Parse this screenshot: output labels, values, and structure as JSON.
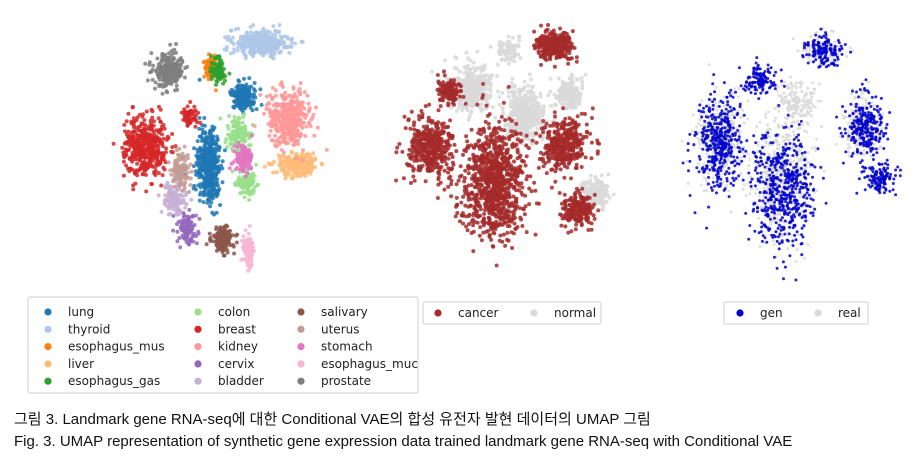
{
  "chart_data": [
    {
      "type": "scatter",
      "title": "",
      "xlabel": "",
      "ylabel": "",
      "grid": false,
      "legend_position": "bottom",
      "series": [
        {
          "name": "lung",
          "color": "#1f77b4",
          "clusters": [
            [
              0.42,
              0.55,
              0.05,
              0.16,
              380
            ],
            [
              0.57,
              0.28,
              0.05,
              0.05,
              170
            ]
          ]
        },
        {
          "name": "thyroid",
          "color": "#aec7e8",
          "clusters": [
            [
              0.64,
              0.07,
              0.12,
              0.05,
              320
            ]
          ]
        },
        {
          "name": "esophagus_mus",
          "color": "#ff7f0e",
          "clusters": [
            [
              0.43,
              0.17,
              0.025,
              0.05,
              70
            ]
          ]
        },
        {
          "name": "liver",
          "color": "#ffbb78",
          "clusters": [
            [
              0.8,
              0.55,
              0.09,
              0.05,
              220
            ]
          ]
        },
        {
          "name": "esophagus_gas",
          "color": "#2ca02c",
          "clusters": [
            [
              0.46,
              0.18,
              0.03,
              0.05,
              90
            ]
          ]
        },
        {
          "name": "colon",
          "color": "#98df8a",
          "clusters": [
            [
              0.55,
              0.43,
              0.05,
              0.06,
              140
            ],
            [
              0.58,
              0.62,
              0.04,
              0.05,
              120
            ]
          ]
        },
        {
          "name": "breast",
          "color": "#d62728",
          "clusters": [
            [
              0.15,
              0.48,
              0.09,
              0.12,
              420
            ],
            [
              0.34,
              0.36,
              0.03,
              0.04,
              60
            ]
          ]
        },
        {
          "name": "kidney",
          "color": "#ff9896",
          "clusters": [
            [
              0.76,
              0.37,
              0.09,
              0.11,
              380
            ]
          ]
        },
        {
          "name": "cervix",
          "color": "#9467bd",
          "clusters": [
            [
              0.33,
              0.8,
              0.04,
              0.06,
              110
            ]
          ]
        },
        {
          "name": "bladder",
          "color": "#c5b0d5",
          "clusters": [
            [
              0.27,
              0.68,
              0.05,
              0.06,
              130
            ]
          ]
        },
        {
          "name": "salivary",
          "color": "#8c564b",
          "clusters": [
            [
              0.48,
              0.84,
              0.05,
              0.05,
              160
            ]
          ]
        },
        {
          "name": "uterus",
          "color": "#c49c94",
          "clusters": [
            [
              0.3,
              0.57,
              0.04,
              0.06,
              120
            ]
          ]
        },
        {
          "name": "stomach",
          "color": "#e377c2",
          "clusters": [
            [
              0.57,
              0.52,
              0.04,
              0.05,
              120
            ]
          ]
        },
        {
          "name": "esophagus_muc",
          "color": "#f7b6d2",
          "clusters": [
            [
              0.59,
              0.88,
              0.025,
              0.07,
              80
            ]
          ]
        },
        {
          "name": "prostate",
          "color": "#7f7f7f",
          "clusters": [
            [
              0.25,
              0.18,
              0.06,
              0.06,
              240
            ]
          ]
        }
      ]
    },
    {
      "type": "scatter",
      "title": "",
      "xlabel": "",
      "ylabel": "",
      "grid": false,
      "legend_position": "bottom",
      "series": [
        {
          "name": "cancer",
          "color": "#a52a2a",
          "clusters": [
            [
              0.15,
              0.48,
              0.09,
              0.12,
              420
            ],
            [
              0.42,
              0.62,
              0.13,
              0.22,
              900
            ],
            [
              0.68,
              0.08,
              0.08,
              0.06,
              300
            ],
            [
              0.72,
              0.47,
              0.09,
              0.1,
              380
            ],
            [
              0.78,
              0.72,
              0.07,
              0.06,
              200
            ],
            [
              0.23,
              0.26,
              0.05,
              0.05,
              120
            ]
          ]
        },
        {
          "name": "normal",
          "color": "#d9d9d9",
          "clusters": [
            [
              0.32,
              0.25,
              0.09,
              0.09,
              380
            ],
            [
              0.55,
              0.35,
              0.08,
              0.11,
              400
            ],
            [
              0.74,
              0.27,
              0.06,
              0.06,
              160
            ],
            [
              0.86,
              0.66,
              0.06,
              0.05,
              140
            ],
            [
              0.48,
              0.1,
              0.05,
              0.04,
              80
            ]
          ]
        }
      ]
    },
    {
      "type": "scatter",
      "title": "",
      "xlabel": "",
      "ylabel": "",
      "grid": false,
      "legend_position": "bottom",
      "series": [
        {
          "name": "gen",
          "color": "#0000cc",
          "clusters": [
            [
              0.18,
              0.45,
              0.1,
              0.18,
              380
            ],
            [
              0.45,
              0.65,
              0.13,
              0.22,
              500
            ],
            [
              0.62,
              0.1,
              0.08,
              0.06,
              150
            ],
            [
              0.8,
              0.4,
              0.08,
              0.12,
              240
            ],
            [
              0.86,
              0.6,
              0.07,
              0.06,
              120
            ],
            [
              0.35,
              0.22,
              0.07,
              0.06,
              120
            ]
          ]
        },
        {
          "name": "real",
          "color": "#d9d9d9",
          "clusters": [
            [
              0.18,
              0.45,
              0.1,
              0.18,
              300
            ],
            [
              0.45,
              0.6,
              0.13,
              0.24,
              450
            ],
            [
              0.62,
              0.1,
              0.08,
              0.06,
              130
            ],
            [
              0.78,
              0.4,
              0.08,
              0.12,
              200
            ],
            [
              0.5,
              0.3,
              0.08,
              0.08,
              160
            ]
          ]
        }
      ]
    }
  ],
  "captions": {
    "korean": "그림 3. Landmark gene RNA-seq에 대한 Conditional VAE의 합성 유전자 발현 데이터의 UMAP 그림",
    "english": "Fig. 3. UMAP representation of synthetic gene expression data trained landmark gene RNA-seq with Conditional VAE"
  }
}
